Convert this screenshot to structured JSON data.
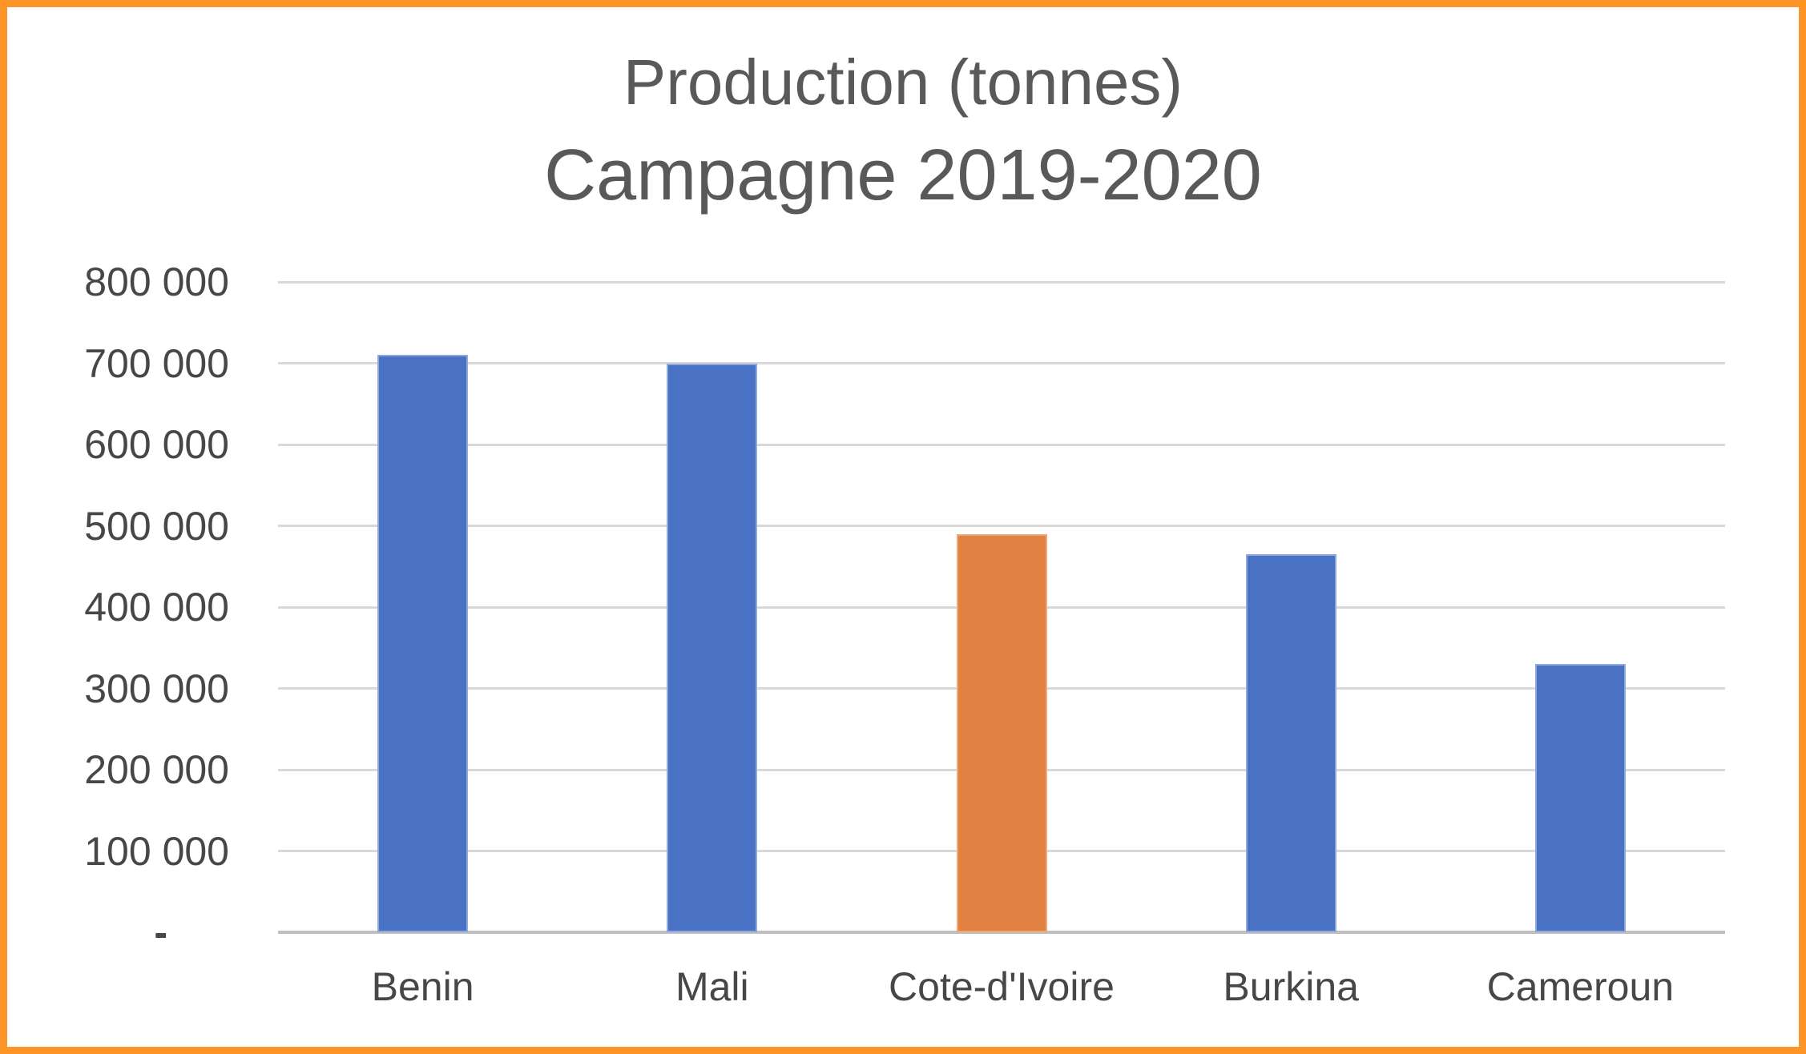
{
  "chart": {
    "title": "Production (tonnes)",
    "subtitle": "Campagne 2019-2020"
  },
  "chart_data": {
    "type": "bar",
    "title": "Production (tonnes)",
    "subtitle": "Campagne 2019-2020",
    "xlabel": "",
    "ylabel": "",
    "categories": [
      "Benin",
      "Mali",
      "Cote-d'Ivoire",
      "Burkina",
      "Cameroun"
    ],
    "values": [
      710000,
      700000,
      490000,
      465000,
      330000
    ],
    "series": [
      {
        "name": "Production (tonnes) Campagne 2019-2020",
        "values": [
          710000,
          700000,
          490000,
          465000,
          330000
        ]
      }
    ],
    "bar_colors": [
      "#4A72C4",
      "#4A72C4",
      "#E08142",
      "#4A72C4",
      "#4A72C4"
    ],
    "bar_edge_colors": [
      "#8FA9DC",
      "#8FA9DC",
      "#EDA876",
      "#8FA9DC",
      "#8FA9DC"
    ],
    "ylim": [
      0,
      800000
    ],
    "y_ticks": [
      {
        "label": "800 000",
        "value": 800000
      },
      {
        "label": "700 000",
        "value": 700000
      },
      {
        "label": "600 000",
        "value": 600000
      },
      {
        "label": "500 000",
        "value": 500000
      },
      {
        "label": "400 000",
        "value": 400000
      },
      {
        "label": "300 000",
        "value": 300000
      },
      {
        "label": "200 000",
        "value": 200000
      },
      {
        "label": "100 000",
        "value": 100000
      },
      {
        "label": "-",
        "value": 0
      }
    ],
    "grid": "horizontal",
    "legend": "none",
    "palette": {
      "accent_blue": "#4A72C4",
      "accent_orange": "#E08142",
      "frame_border": "#FC9428",
      "gridline": "#D9D9D9",
      "axis_line": "#BFBFBF",
      "title_text": "#595959",
      "axis_text": "#474747",
      "background": "#FFFFFF"
    }
  }
}
